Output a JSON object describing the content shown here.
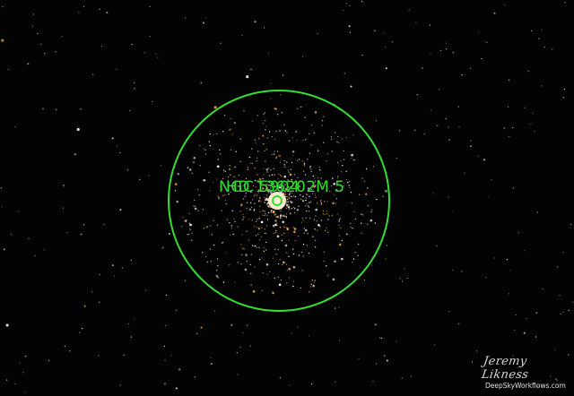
{
  "annotation": {
    "labels": [
      "NGC 5904",
      "M 5"
    ],
    "alt_label": "HD 136202",
    "color": "#33dd33"
  },
  "credits": {
    "author": "Jeremy Likness",
    "website": "DeepSkyWorkflows.com"
  },
  "colors": {
    "sky": "#030303",
    "star_warm": "#ffb347",
    "star_cool": "#ffffff"
  }
}
